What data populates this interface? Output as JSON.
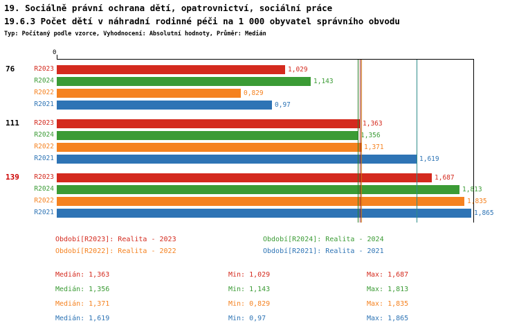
{
  "header": {
    "title_line1": "19. Sociálně právní ochrana dětí, opatrovnictví, sociální práce",
    "title_line2": "19.6.3 Počet dětí v náhradní rodinné péči na 1 000 obyvatel správního obvodu",
    "meta_line": "Typ: Počítaný podle vzorce, Vyhodnocení: Absolutní hodnoty, Průměr: Medián"
  },
  "chart_data": {
    "type": "bar",
    "orientation": "horizontal",
    "title": "19.6.3 Počet dětí v náhradní rodinné péči na 1 000 obyvatel správního obvodu",
    "axis": {
      "origin_label": "0",
      "xmin": 0,
      "xmax": 1.88,
      "grid": false
    },
    "legend_position": "bottom",
    "series": [
      {
        "id": "R2023",
        "label": "R2023",
        "color": "#d42a1e",
        "median": 1.363,
        "median_label": "1,363",
        "median_color": "#9c261b"
      },
      {
        "id": "R2024",
        "label": "R2024",
        "color": "#3b9b35",
        "median": 1.356,
        "median_label": "1,356",
        "median_color": "#2b7a26"
      },
      {
        "id": "R2022",
        "label": "R2022",
        "color": "#f58220",
        "median": 1.371,
        "median_label": "1,371",
        "median_color": "#c96a10"
      },
      {
        "id": "R2021",
        "label": "R2021",
        "color": "#2e74b5",
        "median": 1.619,
        "median_label": "1,619",
        "median_color": "#2d8c88"
      }
    ],
    "groups": [
      {
        "label": "76",
        "label_color": "#000000",
        "bars": [
          {
            "series": "R2023",
            "value": 1.029,
            "value_label": "1,029"
          },
          {
            "series": "R2024",
            "value": 1.143,
            "value_label": "1,143"
          },
          {
            "series": "R2022",
            "value": 0.829,
            "value_label": "0,829"
          },
          {
            "series": "R2021",
            "value": 0.97,
            "value_label": "0,97"
          }
        ]
      },
      {
        "label": "111",
        "label_color": "#000000",
        "bars": [
          {
            "series": "R2023",
            "value": 1.363,
            "value_label": "1,363"
          },
          {
            "series": "R2024",
            "value": 1.356,
            "value_label": "1,356"
          },
          {
            "series": "R2022",
            "value": 1.371,
            "value_label": "1,371"
          },
          {
            "series": "R2021",
            "value": 1.619,
            "value_label": "1,619"
          }
        ]
      },
      {
        "label": "139",
        "label_color": "#cc0000",
        "bars": [
          {
            "series": "R2023",
            "value": 1.687,
            "value_label": "1,687"
          },
          {
            "series": "R2024",
            "value": 1.813,
            "value_label": "1,813"
          },
          {
            "series": "R2022",
            "value": 1.835,
            "value_label": "1,835"
          },
          {
            "series": "R2021",
            "value": 1.865,
            "value_label": "1,865"
          }
        ]
      }
    ]
  },
  "legend": {
    "items": [
      {
        "text": "Období[R2023]: Realita - 2023",
        "color": "#d42a1e"
      },
      {
        "text": "Období[R2024]: Realita - 2024",
        "color": "#3b9b35"
      },
      {
        "text": "Období[R2022]: Realita - 2022",
        "color": "#f58220"
      },
      {
        "text": "Období[R2021]: Realita - 2021",
        "color": "#2e74b5"
      }
    ]
  },
  "stats": {
    "rows": [
      {
        "color": "#d42a1e",
        "median": "Medián: 1,363",
        "min": "Min: 1,029",
        "max": "Max: 1,687"
      },
      {
        "color": "#3b9b35",
        "median": "Medián: 1,356",
        "min": "Min: 1,143",
        "max": "Max: 1,813"
      },
      {
        "color": "#f58220",
        "median": "Medián: 1,371",
        "min": "Min: 0,829",
        "max": "Max: 1,835"
      },
      {
        "color": "#2e74b5",
        "median": "Medián: 1,619",
        "min": "Min: 0,97",
        "max": "Max: 1,865"
      }
    ]
  }
}
